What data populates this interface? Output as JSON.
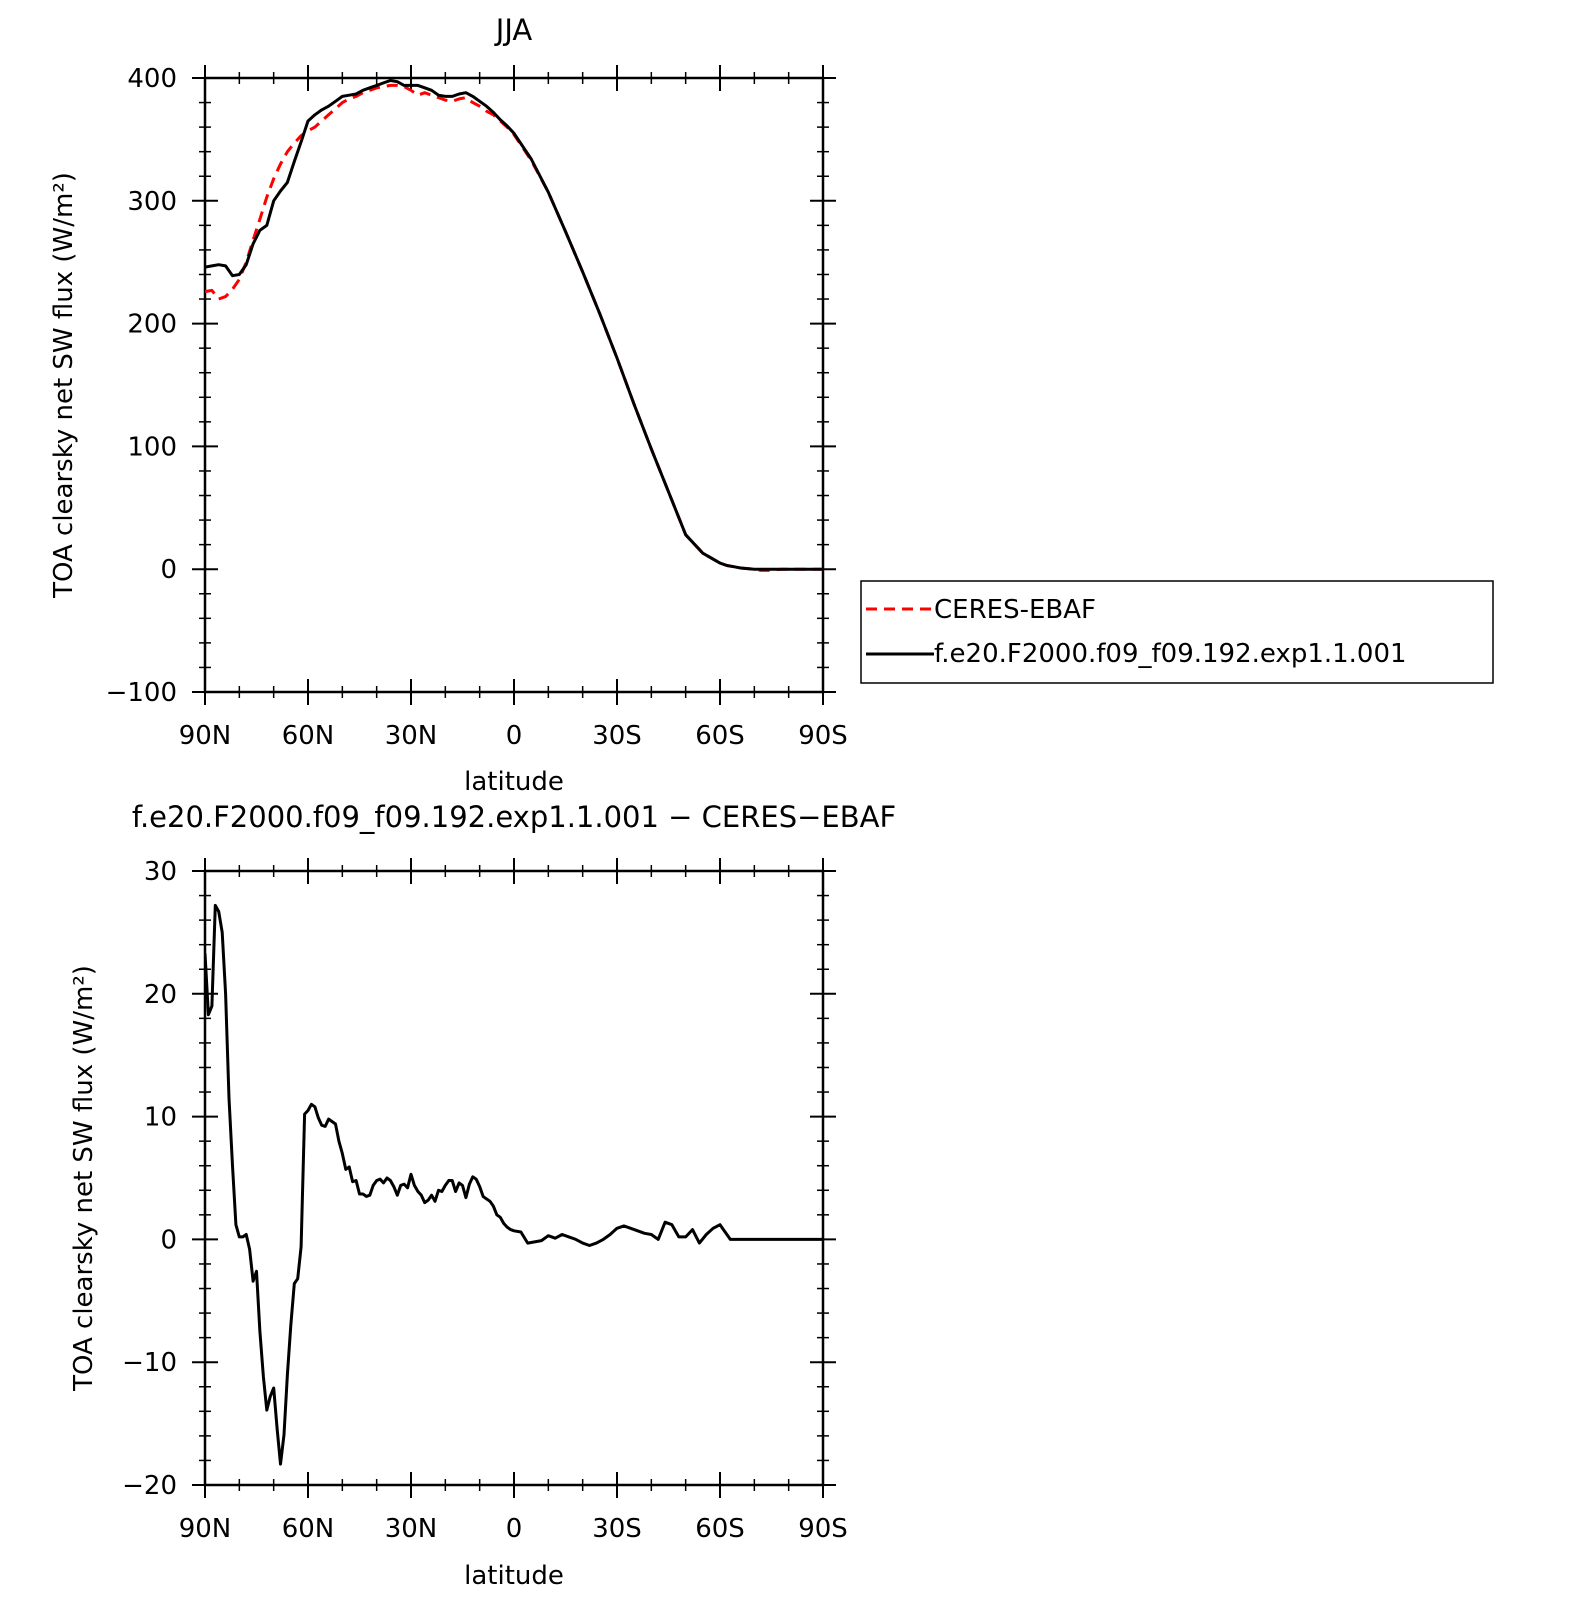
{
  "chart_data": [
    {
      "type": "line",
      "title": "JJA",
      "xlabel": "latitude",
      "ylabel": "TOA clearsky net SW flux (W/m²)",
      "xlim": [
        90,
        -90
      ],
      "ylim": [
        -100,
        400
      ],
      "xticks": [
        90,
        60,
        30,
        0,
        -30,
        -60,
        -90
      ],
      "xtick_labels": [
        "90N",
        "60N",
        "30N",
        "0",
        "30S",
        "60S",
        "90S"
      ],
      "yticks": [
        -100,
        0,
        100,
        200,
        300,
        400
      ],
      "ytick_labels": [
        "−100",
        "0",
        "100",
        "200",
        "300",
        "400"
      ],
      "legend": "right",
      "series": [
        {
          "name": "CERES-EBAF",
          "color": "#ff0000",
          "dash": "dashed",
          "x": [
            90,
            88,
            86,
            84,
            82,
            80,
            78,
            76,
            74,
            72,
            70,
            68,
            66,
            64,
            62,
            60,
            58,
            56,
            54,
            52,
            50,
            48,
            46,
            44,
            42,
            40,
            38,
            36,
            34,
            32,
            30,
            28,
            26,
            24,
            22,
            20,
            18,
            16,
            14,
            12,
            10,
            8,
            6,
            4,
            2,
            0,
            -5,
            -10,
            -15,
            -20,
            -25,
            -30,
            -35,
            -40,
            -45,
            -50,
            -55,
            -60,
            -62,
            -64,
            -66,
            -68,
            -70,
            -72,
            -74,
            -76,
            -78,
            -80,
            -85,
            -90
          ],
          "y": [
            226,
            227,
            220,
            222,
            228,
            236,
            250,
            268,
            285,
            303,
            318,
            330,
            340,
            347,
            353,
            357,
            360,
            365,
            370,
            375,
            380,
            383,
            385,
            388,
            390,
            392,
            393,
            394,
            394,
            393,
            390,
            386,
            388,
            386,
            384,
            382,
            381,
            383,
            384,
            380,
            377,
            373,
            370,
            365,
            360,
            354,
            333,
            307,
            275,
            242,
            208,
            172,
            134,
            98,
            63,
            28,
            13,
            5,
            3,
            2,
            1,
            0.5,
            0,
            -1,
            -1,
            -0.5,
            0,
            0,
            0,
            0
          ]
        },
        {
          "name": "f.e20.F2000.f09_f09.192.exp1.1.001",
          "color": "#000000",
          "dash": "solid",
          "x": [
            90,
            88,
            86,
            84,
            82,
            80,
            78,
            76,
            74,
            72,
            70,
            68,
            66,
            64,
            62,
            60,
            58,
            56,
            54,
            52,
            50,
            48,
            46,
            44,
            42,
            40,
            38,
            36,
            34,
            32,
            30,
            28,
            26,
            24,
            22,
            20,
            18,
            16,
            14,
            12,
            10,
            8,
            6,
            4,
            2,
            0,
            -5,
            -10,
            -15,
            -20,
            -25,
            -30,
            -35,
            -40,
            -45,
            -50,
            -55,
            -60,
            -62,
            -64,
            -66,
            -68,
            -70,
            -72,
            -74,
            -76,
            -78,
            -80,
            -85,
            -90
          ],
          "y": [
            246,
            247,
            248,
            247,
            239,
            240,
            248,
            265,
            276,
            280,
            300,
            308,
            315,
            332,
            348,
            365,
            370,
            374,
            377,
            381,
            385,
            386,
            387,
            390,
            392,
            394,
            396,
            398,
            397,
            394,
            394,
            394,
            392,
            390,
            386,
            385,
            385,
            387,
            388,
            385,
            381,
            377,
            372,
            366,
            361,
            355,
            334,
            307,
            275,
            242,
            208,
            172,
            134,
            98,
            63,
            28,
            13,
            5,
            3,
            2,
            1,
            0.5,
            0,
            0,
            0,
            0,
            0,
            0,
            0,
            0
          ]
        }
      ]
    },
    {
      "type": "line",
      "title": "f.e20.F2000.f09_f09.192.exp1.1.001 − CERES−EBAF",
      "xlabel": "latitude",
      "ylabel": "TOA clearsky net SW flux (W/m²)",
      "xlim": [
        90,
        -90
      ],
      "ylim": [
        -20,
        30
      ],
      "xticks": [
        90,
        60,
        30,
        0,
        -30,
        -60,
        -90
      ],
      "xtick_labels": [
        "90N",
        "60N",
        "30N",
        "0",
        "30S",
        "60S",
        "90S"
      ],
      "yticks": [
        -20,
        -10,
        0,
        10,
        20,
        30
      ],
      "ytick_labels": [
        "−20",
        "−10",
        "0",
        "10",
        "20",
        "30"
      ],
      "series": [
        {
          "color": "#000000",
          "dash": "solid",
          "x": [
            90,
            89,
            88,
            87,
            86,
            85,
            84,
            83,
            82,
            81,
            80,
            79,
            78,
            77,
            76,
            75,
            74,
            73,
            72,
            71,
            70,
            69,
            68,
            67,
            66,
            65,
            64,
            63,
            62,
            61,
            60,
            59,
            58,
            57,
            56,
            55,
            54,
            53,
            52,
            51,
            50,
            49,
            48,
            47,
            46,
            45,
            44,
            43,
            42,
            41,
            40,
            39,
            38,
            37,
            36,
            35,
            34,
            33,
            32,
            31,
            30,
            29,
            28,
            27,
            26,
            25,
            24,
            23,
            22,
            21,
            20,
            19,
            18,
            17,
            16,
            15,
            14,
            13,
            12,
            11,
            10,
            9,
            8,
            7,
            6,
            5,
            4,
            3,
            2,
            1,
            0,
            -2,
            -4,
            -6,
            -8,
            -10,
            -12,
            -14,
            -16,
            -18,
            -20,
            -22,
            -24,
            -26,
            -28,
            -30,
            -32,
            -34,
            -36,
            -38,
            -40,
            -42,
            -44,
            -46,
            -48,
            -50,
            -52,
            -54,
            -56,
            -58,
            -60,
            -61,
            -62,
            -63,
            -64,
            -66,
            -68,
            -70,
            -72,
            -74,
            -76,
            -78,
            -80,
            -82,
            -84,
            -86,
            -88,
            -90
          ],
          "y": [
            23.3,
            18.3,
            19.0,
            27.2,
            26.7,
            25.0,
            20.0,
            11.5,
            6.0,
            1.2,
            0.2,
            0.2,
            0.4,
            -0.8,
            -3.4,
            -2.6,
            -7.5,
            -11.2,
            -13.9,
            -12.8,
            -12.1,
            -15.4,
            -18.3,
            -15.9,
            -11.0,
            -7.0,
            -3.6,
            -3.2,
            -0.6,
            10.2,
            10.5,
            11.0,
            10.8,
            9.9,
            9.3,
            9.2,
            9.8,
            9.6,
            9.4,
            8.0,
            7.0,
            5.7,
            5.9,
            4.7,
            4.8,
            3.7,
            3.7,
            3.5,
            3.6,
            4.4,
            4.8,
            4.9,
            4.6,
            5.0,
            4.8,
            4.3,
            3.6,
            4.4,
            4.5,
            4.2,
            5.3,
            4.4,
            3.9,
            3.6,
            3.0,
            3.2,
            3.6,
            3.1,
            4.0,
            3.9,
            4.4,
            4.8,
            4.8,
            3.9,
            4.6,
            4.4,
            3.4,
            4.5,
            5.1,
            4.9,
            4.3,
            3.5,
            3.3,
            3.1,
            2.7,
            2.0,
            1.8,
            1.3,
            1.0,
            0.8,
            0.7,
            0.6,
            -0.3,
            -0.2,
            -0.1,
            0.3,
            0.1,
            0.4,
            0.2,
            0.0,
            -0.3,
            -0.5,
            -0.3,
            0.0,
            0.4,
            0.9,
            1.1,
            0.9,
            0.7,
            0.5,
            0.4,
            0.0,
            1.4,
            1.2,
            0.2,
            0.2,
            0.8,
            -0.3,
            0.4,
            0.9,
            1.2,
            0.8,
            0.4,
            0.0,
            0.0,
            0.0,
            0.0,
            0.0,
            0.0,
            0.0,
            0.0,
            0.0,
            0.0,
            0.0,
            0.0,
            0.0,
            0.0,
            0.0
          ]
        }
      ]
    }
  ]
}
